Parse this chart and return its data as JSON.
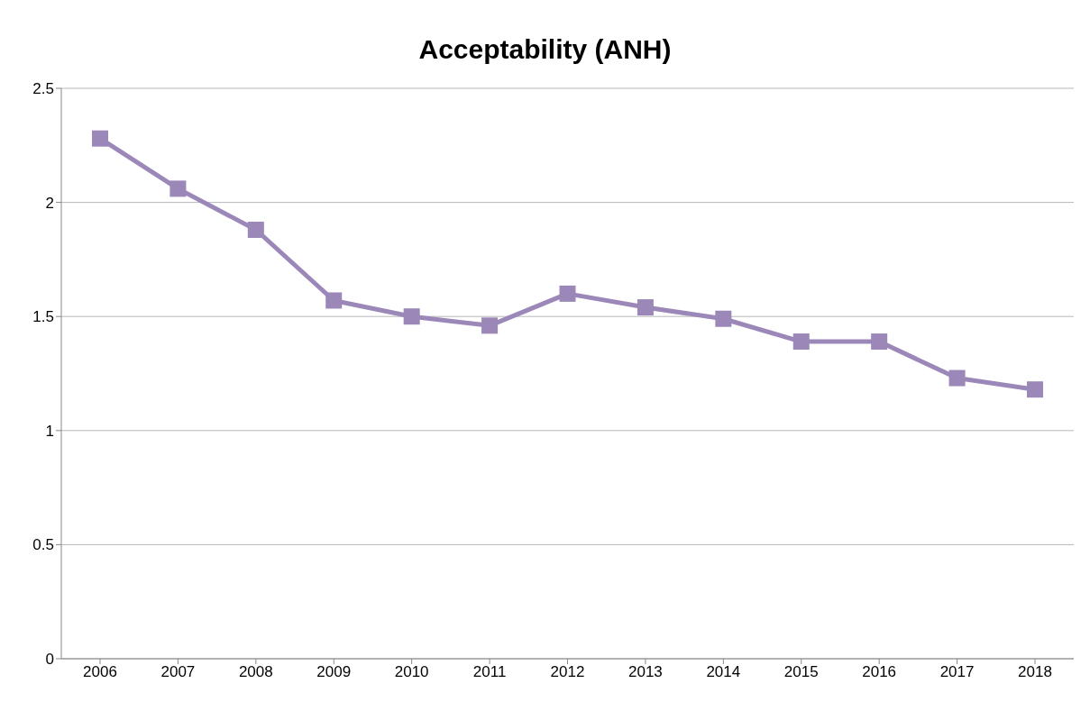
{
  "chart_data": {
    "type": "line",
    "title": "Acceptability (ANH)",
    "categories": [
      "2006",
      "2007",
      "2008",
      "2009",
      "2010",
      "2011",
      "2012",
      "2013",
      "2014",
      "2015",
      "2016",
      "2017",
      "2018"
    ],
    "series": [
      {
        "color": "#9b88b8",
        "values": [
          2.28,
          2.06,
          1.88,
          1.57,
          1.5,
          1.46,
          1.6,
          1.54,
          1.49,
          1.39,
          1.39,
          1.23,
          1.18
        ]
      }
    ],
    "ylim": [
      0,
      2.5
    ],
    "yticks": [
      0,
      0.5,
      1,
      1.5,
      2,
      2.5
    ],
    "grid": "y",
    "marker": "square",
    "line_style": "solid",
    "legend": false
  }
}
